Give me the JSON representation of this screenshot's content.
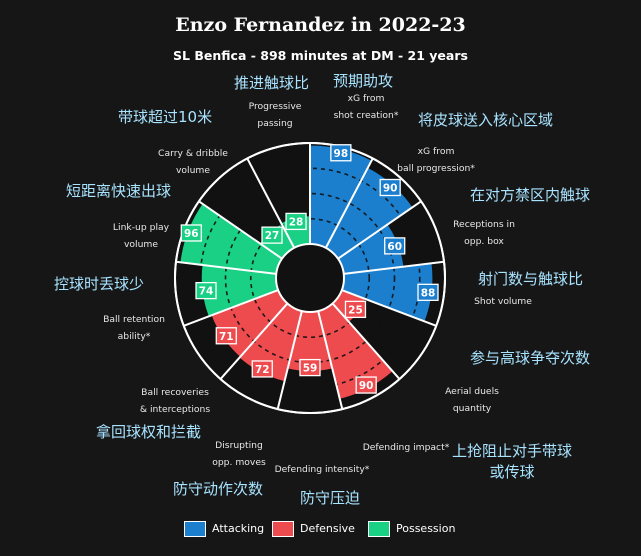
{
  "chart_data": {
    "type": "pie",
    "subtype": "pizza",
    "title": "Enzo Fernandez in 2022-23",
    "subtitle": "SL Benfica - 898 minutes at DM - 21 years",
    "value_range": [
      0,
      100
    ],
    "segments": [
      {
        "label": "xG from\nshot creation*",
        "zh": "预期助攻",
        "category": "Attacking",
        "value": 98
      },
      {
        "label": "xG from\nball progression*",
        "zh": "将皮球送入核心区域",
        "category": "Attacking",
        "value": 90
      },
      {
        "label": "Receptions in\nopp. box",
        "zh": "在对方禁区内触球",
        "category": "Attacking",
        "value": 60
      },
      {
        "label": "Shot volume",
        "zh": "射门数与触球比",
        "category": "Attacking",
        "value": 88
      },
      {
        "label": "Aerial duels\nquantity",
        "zh": "参与高球争夺次数",
        "category": "Defensive",
        "value": 25
      },
      {
        "label": "Defending impact*",
        "zh": "上抢阻止对手带球\n或传球",
        "category": "Defensive",
        "value": 90
      },
      {
        "label": "Defending intensity*",
        "zh": "防守压迫",
        "category": "Defensive",
        "value": 59
      },
      {
        "label": "Disrupting\nopp. moves",
        "zh": "防守动作次数",
        "category": "Defensive",
        "value": 72
      },
      {
        "label": "Ball recoveries\n& interceptions",
        "zh": "拿回球权和拦截",
        "category": "Defensive",
        "value": 71
      },
      {
        "label": "Ball retention\nability*",
        "zh": "控球时丢球少",
        "category": "Possession",
        "value": 74
      },
      {
        "label": "Link-up play\nvolume",
        "zh": "短距离快速出球",
        "category": "Possession",
        "value": 96
      },
      {
        "label": "Carry & dribble\nvolume",
        "zh": "带球超过10米",
        "category": "Possession",
        "value": 27
      },
      {
        "label": "Progressive\npassing",
        "zh": "推进触球比",
        "category": "Possession",
        "value": 28
      }
    ],
    "legend": [
      {
        "name": "Attacking",
        "color": "#1b7fce"
      },
      {
        "name": "Defensive",
        "color": "#ee4b4f"
      },
      {
        "name": "Possession",
        "color": "#19d084"
      }
    ],
    "legend_position": "bottom"
  }
}
